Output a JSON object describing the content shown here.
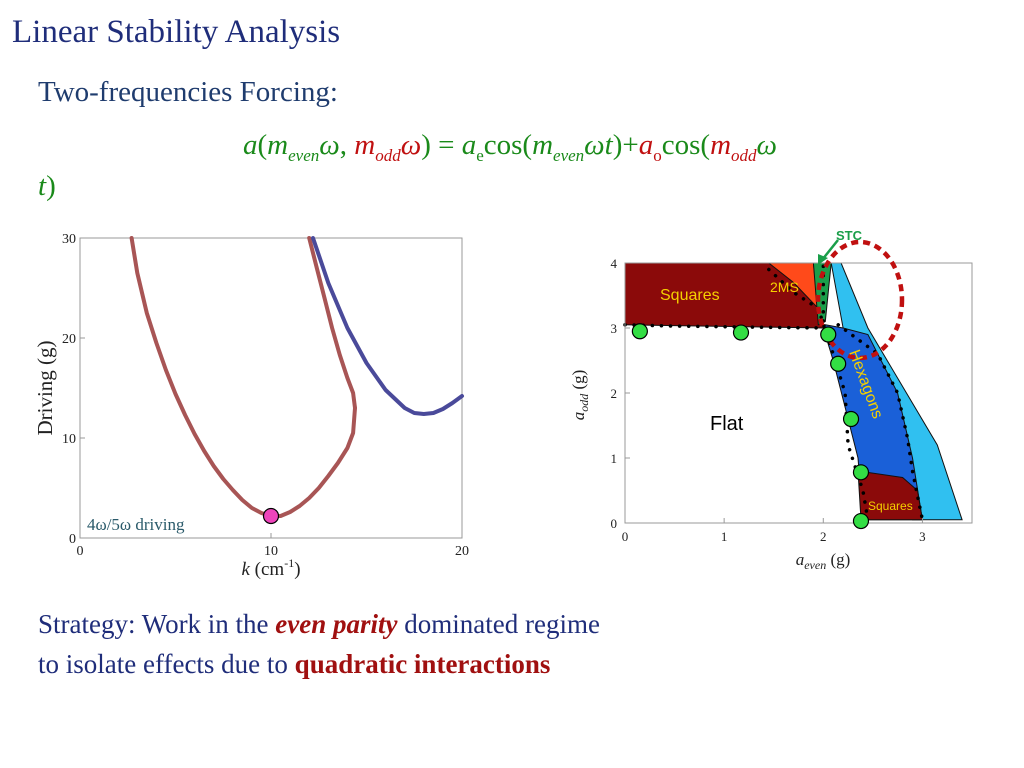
{
  "slide": {
    "title": "Linear Stability Analysis",
    "subtitle": "Two-frequencies Forcing:",
    "formula": {
      "a": "a",
      "paren_open": "(",
      "m1": "m",
      "even": "even",
      "omega1": "ω",
      "comma": ", ",
      "m2": "m",
      "odd": "odd",
      "omega2": "ω",
      "eq": ") = ",
      "ae_a": "a",
      "ae_e": "e",
      "cos1": "cos(",
      "m3": "m",
      "even2": "even",
      "omega3": "ω",
      "t1": "t",
      "plus": ")+",
      "ao_a": "a",
      "ao_o": "o",
      "cos2": "cos(",
      "m4": "m",
      "odd2": "odd",
      "omega4": "ω",
      "t2": "t",
      "close": ")"
    },
    "strategy": {
      "line1_prefix": "Strategy: Work in the ",
      "line1_em": "even parity",
      "line1_suffix": " dominated regime",
      "line2_prefix": "to isolate effects due to ",
      "line2_em": "quadratic interactions"
    }
  },
  "chart_data": [
    {
      "type": "line",
      "xlabel_italic": "k",
      "xlabel_rest": " (cm",
      "xlabel_sup": "-1",
      "xlabel_close": ")",
      "ylabel": "Driving (g)",
      "xlim": [
        0,
        20
      ],
      "ylim": [
        0,
        30
      ],
      "xticks": [
        0,
        10,
        20
      ],
      "yticks": [
        0,
        10,
        20,
        30
      ],
      "annotation": "4ω/5ω driving",
      "colors": {
        "red_curve": "#a85555",
        "blue_curve": "#4a4a9a",
        "marker": "#ee44bb"
      },
      "series": [
        {
          "color": "#a85555",
          "x": [
            2.7,
            3.0,
            3.5,
            4.0,
            4.5,
            5.0,
            5.5,
            6.0,
            6.5,
            7.0,
            7.5,
            8.0,
            8.5,
            9.0,
            9.5,
            10.0,
            10.5,
            11.0,
            11.5,
            12.0,
            12.5,
            13.0,
            13.5,
            14.0,
            14.3,
            14.4
          ],
          "y": [
            30,
            26.5,
            22.5,
            19.5,
            16.8,
            14.4,
            12.3,
            10.4,
            8.7,
            7.2,
            5.9,
            4.8,
            3.8,
            3.0,
            2.5,
            2.2,
            2.2,
            2.6,
            3.2,
            4.0,
            5.0,
            6.2,
            7.5,
            9.0,
            10.5,
            13.0
          ]
        },
        {
          "color": "#a85555",
          "x": [
            12.0,
            12.4,
            12.8,
            13.2,
            13.6,
            14.0,
            14.3,
            14.4
          ],
          "y": [
            30,
            27.0,
            24.0,
            21.0,
            18.3,
            16.0,
            14.5,
            13.0
          ]
        },
        {
          "color": "#4a4a9a",
          "x": [
            12.2,
            13.0,
            14.0,
            15.0,
            16.0,
            17.0,
            17.5,
            18.0,
            18.5,
            19.0,
            19.5,
            20.0
          ],
          "y": [
            30,
            25.5,
            21.0,
            17.5,
            14.8,
            13.0,
            12.5,
            12.4,
            12.5,
            12.9,
            13.5,
            14.2
          ]
        }
      ],
      "markers": [
        {
          "x": 10.0,
          "y": 2.2,
          "color": "#ee44bb"
        }
      ]
    },
    {
      "type": "area",
      "xlabel_a": "a",
      "xlabel_sub": "even",
      "xlabel_unit": " (g)",
      "ylabel_a": "a",
      "ylabel_sub": "odd",
      "ylabel_unit": " (g)",
      "xlim": [
        0,
        3.5
      ],
      "ylim": [
        0,
        4
      ],
      "xticks": [
        0,
        1,
        2,
        3
      ],
      "yticks": [
        0,
        1,
        2,
        3,
        4
      ],
      "regions": [
        {
          "label": "Squares",
          "color": "#8b0a0a",
          "label_color": "#f5d000",
          "points": [
            [
              0,
              4
            ],
            [
              1.9,
              4
            ],
            [
              2.0,
              3.0
            ],
            [
              0,
              3.05
            ]
          ]
        },
        {
          "label": "2MS",
          "color": "#ff4a1a",
          "label_color": "#f5d000",
          "points": [
            [
              1.45,
              4
            ],
            [
              1.9,
              4
            ],
            [
              1.95,
              3.3
            ],
            [
              1.7,
              3.7
            ]
          ]
        },
        {
          "label": "STC",
          "color": "#1a9e4a",
          "label_color": "#1a9e4a",
          "points": [
            [
              1.9,
              4
            ],
            [
              2.08,
              4
            ],
            [
              2.02,
              3.1
            ],
            [
              1.95,
              3.05
            ]
          ]
        },
        {
          "label": "",
          "color": "#30c0f0",
          "points": [
            [
              2.08,
              4
            ],
            [
              2.18,
              4
            ],
            [
              2.45,
              3.0
            ],
            [
              3.15,
              1.2
            ],
            [
              3.4,
              0.05
            ],
            [
              2.9,
              0.05
            ],
            [
              2.7,
              1.5
            ],
            [
              2.2,
              3.0
            ]
          ]
        },
        {
          "label": "Hexagons",
          "color": "#1a60d8",
          "label_color": "#f5d000",
          "points": [
            [
              2.02,
              3.05
            ],
            [
              2.2,
              3.0
            ],
            [
              2.45,
              2.9
            ],
            [
              2.75,
              2.0
            ],
            [
              2.9,
              1.0
            ],
            [
              3.0,
              0.05
            ],
            [
              2.4,
              0.05
            ],
            [
              2.35,
              1.0
            ],
            [
              2.25,
              1.6
            ],
            [
              2.1,
              2.5
            ],
            [
              2.0,
              3.0
            ]
          ]
        },
        {
          "label": "Squares",
          "color": "#8b0a0a",
          "label_color": "#f5d000",
          "points": [
            [
              2.35,
              0.8
            ],
            [
              2.8,
              0.7
            ],
            [
              2.95,
              0.5
            ],
            [
              3.0,
              0.05
            ],
            [
              2.38,
              0.05
            ]
          ]
        },
        {
          "label": "Flat",
          "color": "#ffffff",
          "label_color": "#000000",
          "points": []
        }
      ],
      "green_points": [
        [
          0.15,
          2.95
        ],
        [
          1.17,
          2.93
        ],
        [
          2.05,
          2.9
        ],
        [
          2.15,
          2.45
        ],
        [
          2.28,
          1.6
        ],
        [
          2.38,
          0.78
        ],
        [
          2.38,
          0.03
        ]
      ],
      "dotted_boundaries": [
        [
          [
            0,
            3.05
          ],
          [
            0.5,
            3.03
          ],
          [
            1.0,
            3.02
          ],
          [
            1.5,
            3.01
          ],
          [
            2.0,
            3.0
          ]
        ],
        [
          [
            1.95,
            3.3
          ],
          [
            2.1,
            2.6
          ],
          [
            2.22,
            2.0
          ],
          [
            2.25,
            1.2
          ],
          [
            2.4,
            0.5
          ],
          [
            2.45,
            0.05
          ]
        ],
        [
          [
            1.45,
            3.9
          ],
          [
            1.7,
            3.55
          ],
          [
            1.95,
            3.3
          ]
        ],
        [
          [
            2.0,
            3.95
          ],
          [
            2.0,
            3.0
          ]
        ],
        [
          [
            2.15,
            3.05
          ],
          [
            2.55,
            2.6
          ],
          [
            2.75,
            2.0
          ],
          [
            2.85,
            1.3
          ],
          [
            2.9,
            0.8
          ],
          [
            3.0,
            0.05
          ]
        ]
      ],
      "stc_label": "STC",
      "colors": {
        "dotted_ring": "#c01010",
        "green_marker": "#33dd44",
        "arrow": "#1a9e4a"
      }
    }
  ]
}
